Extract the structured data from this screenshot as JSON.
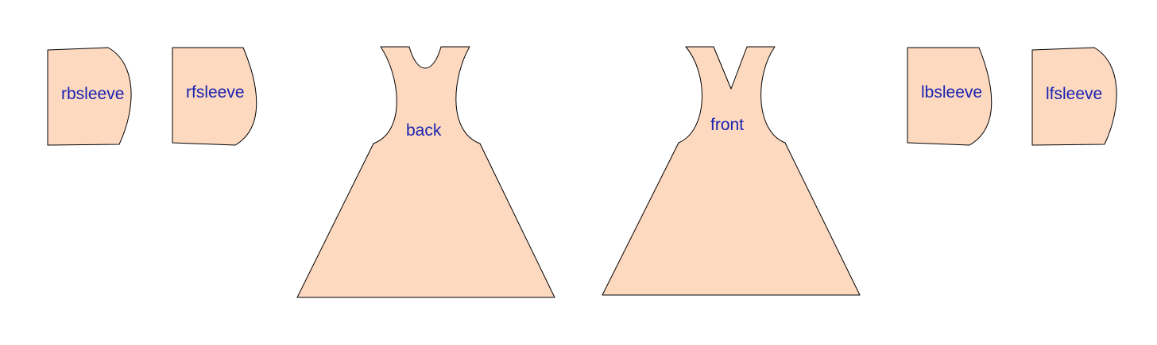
{
  "diagram": {
    "fill_color": "#fdd9c0",
    "stroke_color": "#000000",
    "label_color": "#1a23b0",
    "pieces": [
      {
        "id": "rbsleeve",
        "label": "rbsleeve"
      },
      {
        "id": "rfsleeve",
        "label": "rfsleeve"
      },
      {
        "id": "back",
        "label": "back"
      },
      {
        "id": "front",
        "label": "front"
      },
      {
        "id": "lbsleeve",
        "label": "lbsleeve"
      },
      {
        "id": "lfsleeve",
        "label": "lfsleeve"
      }
    ]
  }
}
